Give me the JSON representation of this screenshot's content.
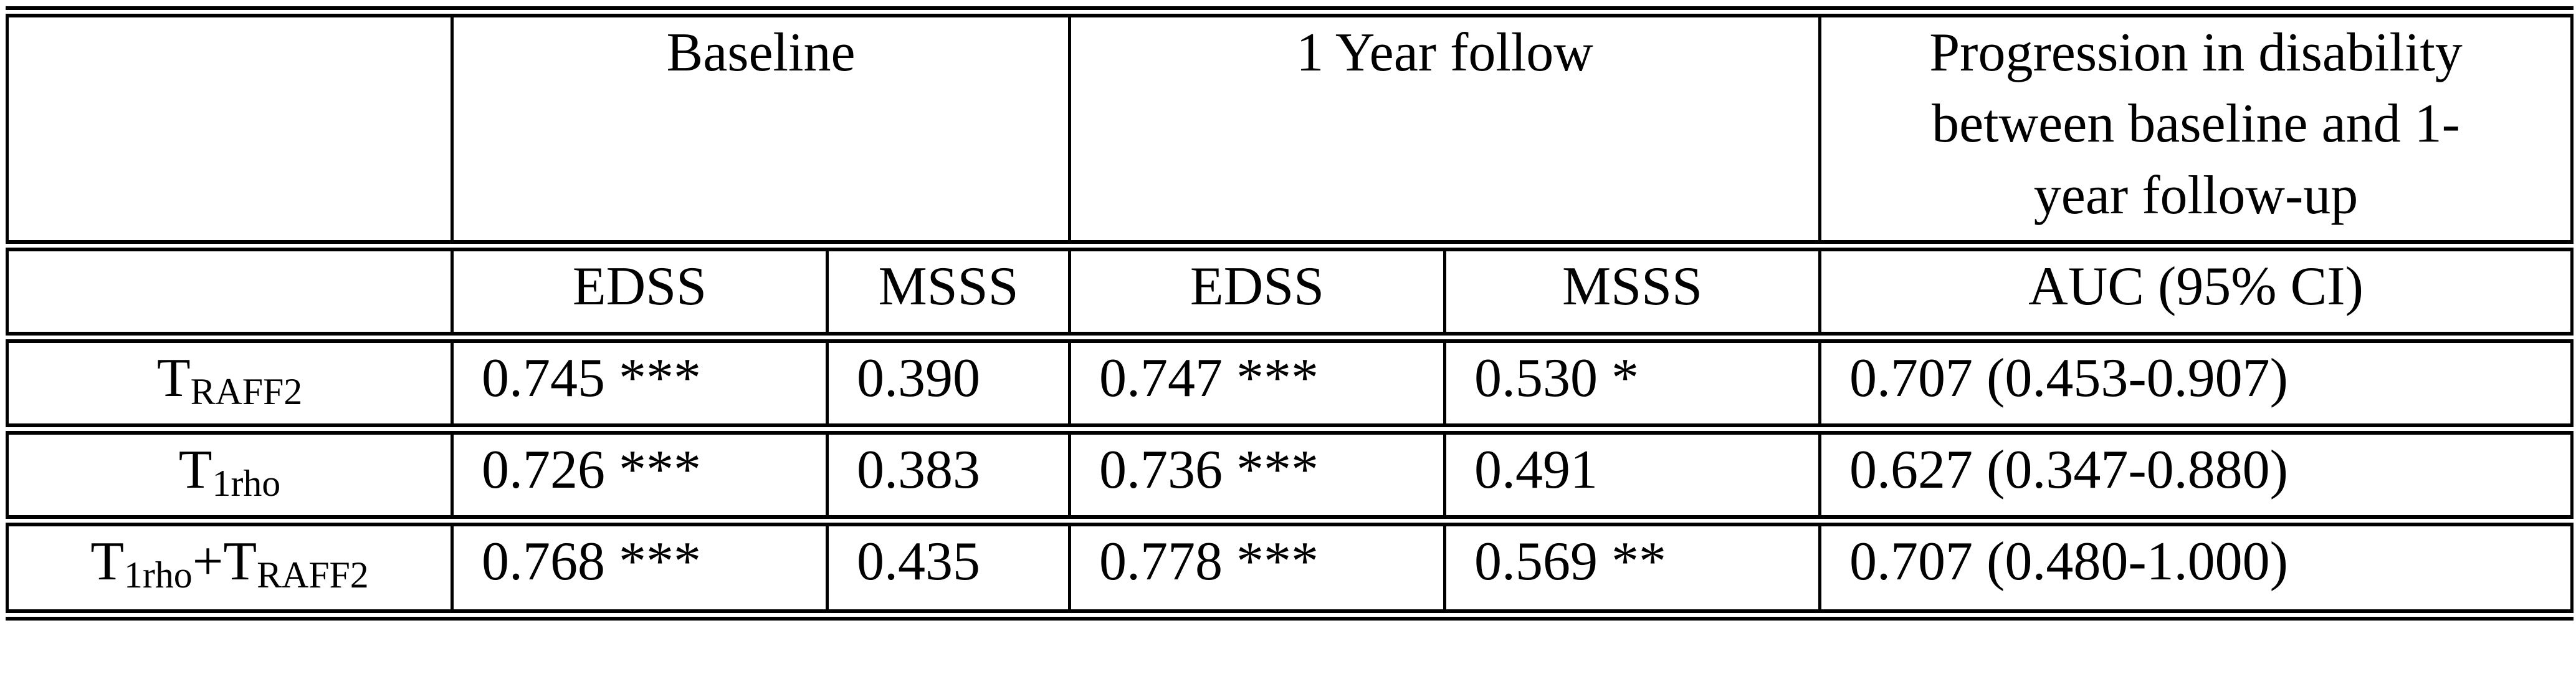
{
  "table": {
    "group_headers": {
      "baseline": "Baseline",
      "one_year": "1 Year follow",
      "progression_lines": [
        "Progression in disability",
        "between baseline and 1-",
        "year follow-up"
      ]
    },
    "sub_headers": {
      "baseline_edss": "EDSS",
      "baseline_msss": "MSSS",
      "year_edss": "EDSS",
      "year_msss": "MSSS",
      "auc": "AUC (95% CI)"
    },
    "rows": [
      {
        "label": {
          "main": "T",
          "sub": "RAFF2"
        },
        "values": {
          "baseline_edss": "0.745 ***",
          "baseline_msss": "0.390",
          "year_edss": "0.747 ***",
          "year_msss": "0.530 *",
          "auc": "0.707 (0.453-0.907)"
        }
      },
      {
        "label": {
          "main": "T",
          "sub": "1rho"
        },
        "values": {
          "baseline_edss": "0.726 ***",
          "baseline_msss": "0.383",
          "year_edss": "0.736 ***",
          "year_msss": "0.491",
          "auc": "0.627 (0.347-0.880)"
        }
      },
      {
        "label": {
          "main1": "T",
          "sub1": "1rho",
          "plus": "+",
          "main2": "T",
          "sub2": "RAFF2"
        },
        "values": {
          "baseline_edss": "0.768 ***",
          "baseline_msss": "0.435",
          "year_edss": "0.778 ***",
          "year_msss": "0.569 **",
          "auc": "0.707 (0.480-1.000)"
        }
      }
    ]
  }
}
